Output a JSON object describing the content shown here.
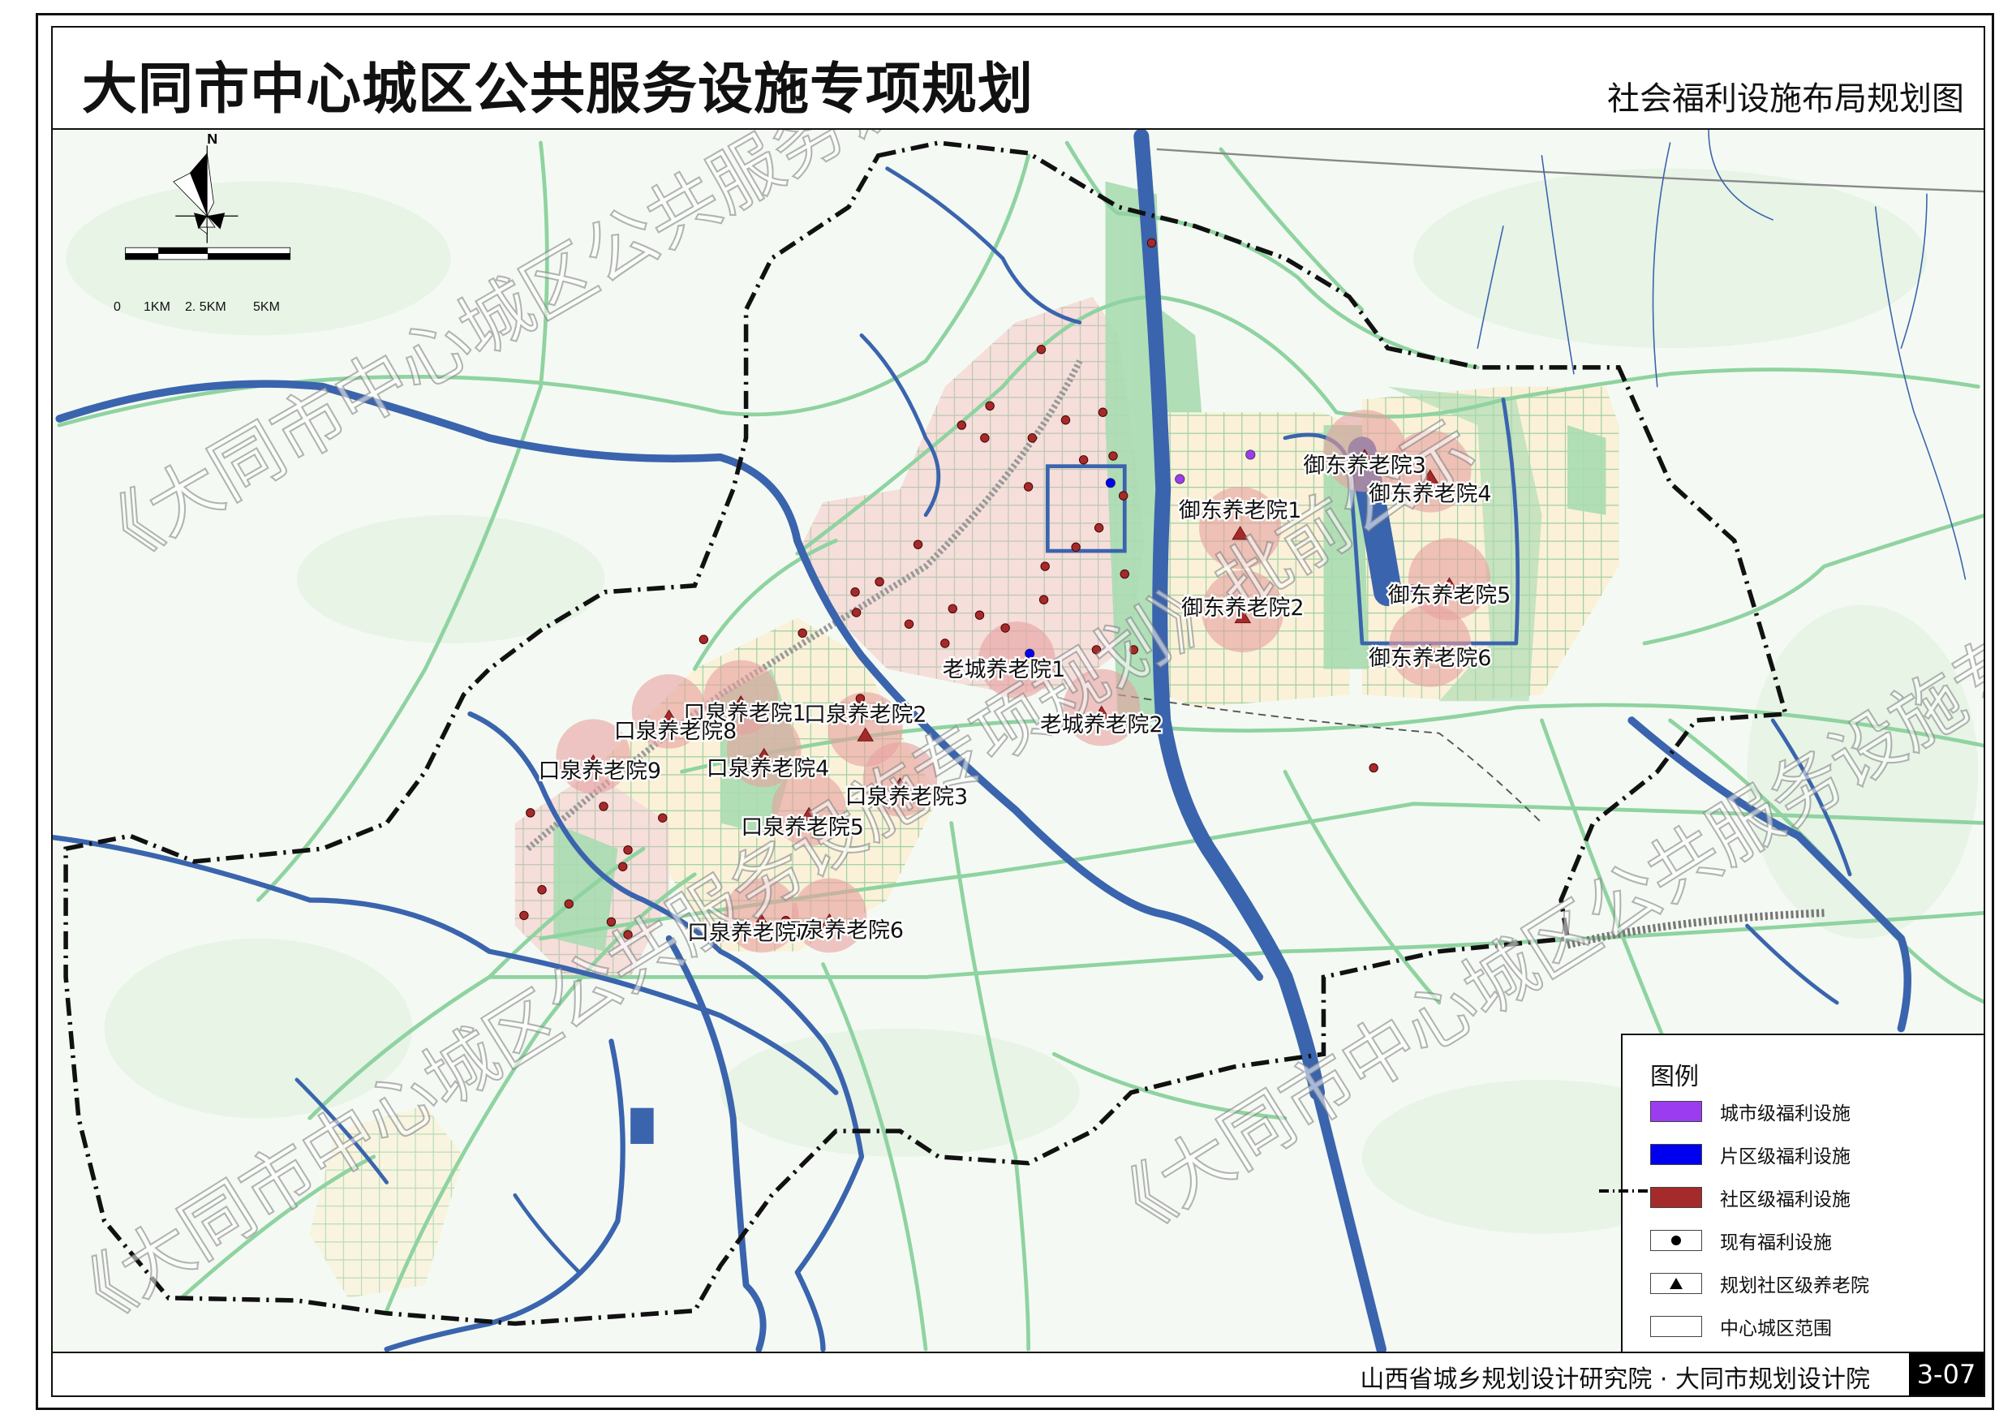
{
  "header": {
    "title": "大同市中心城区公共服务设施专项规划",
    "subtitle": "社会福利设施布局规划图"
  },
  "map": {
    "north_label": "N",
    "scale_labels": [
      "0",
      "1KM",
      "2. 5KM",
      "5KM"
    ],
    "watermark": "《大同市中心城区公共服务设施专项规划》批前公示",
    "colors": {
      "river": "#3a64ad",
      "road": "#8fd3a0",
      "boundary": "#111111",
      "service_radius": "#e8a0a0",
      "city_level": "#9b3cf0",
      "district_level": "#0000ee",
      "community_level": "#a52a2a"
    },
    "facilities": [
      {
        "name": "御东养老院1"
      },
      {
        "name": "御东养老院2"
      },
      {
        "name": "御东养老院3"
      },
      {
        "name": "御东养老院4"
      },
      {
        "name": "御东养老院5"
      },
      {
        "name": "御东养老院6"
      },
      {
        "name": "老城养老院1"
      },
      {
        "name": "老城养老院2"
      },
      {
        "name": "口泉养老院1"
      },
      {
        "name": "口泉养老院2"
      },
      {
        "name": "口泉养老院3"
      },
      {
        "name": "口泉养老院4"
      },
      {
        "name": "口泉养老院5"
      },
      {
        "name": "口泉养老院6"
      },
      {
        "name": "口泉养老院7"
      },
      {
        "name": "口泉养老院8"
      },
      {
        "name": "口泉养老院9"
      }
    ]
  },
  "legend": {
    "title": "图例",
    "items": [
      {
        "label": "城市级福利设施",
        "symbol": "purple-fill",
        "color": "#9b3cf0"
      },
      {
        "label": "片区级福利设施",
        "symbol": "blue-fill",
        "color": "#0000ee"
      },
      {
        "label": "社区级福利设施",
        "symbol": "red-fill",
        "color": "#a52a2a"
      },
      {
        "label": "现有福利设施",
        "symbol": "dot-icon"
      },
      {
        "label": "规划社区级养老院",
        "symbol": "triangle-icon"
      },
      {
        "label": "中心城区范围",
        "symbol": "dash-dot-line-icon"
      }
    ]
  },
  "footer": {
    "institutes": "山西省城乡规划设计研究院 · 大同市规划设计院",
    "sheet_number": "3-07"
  }
}
